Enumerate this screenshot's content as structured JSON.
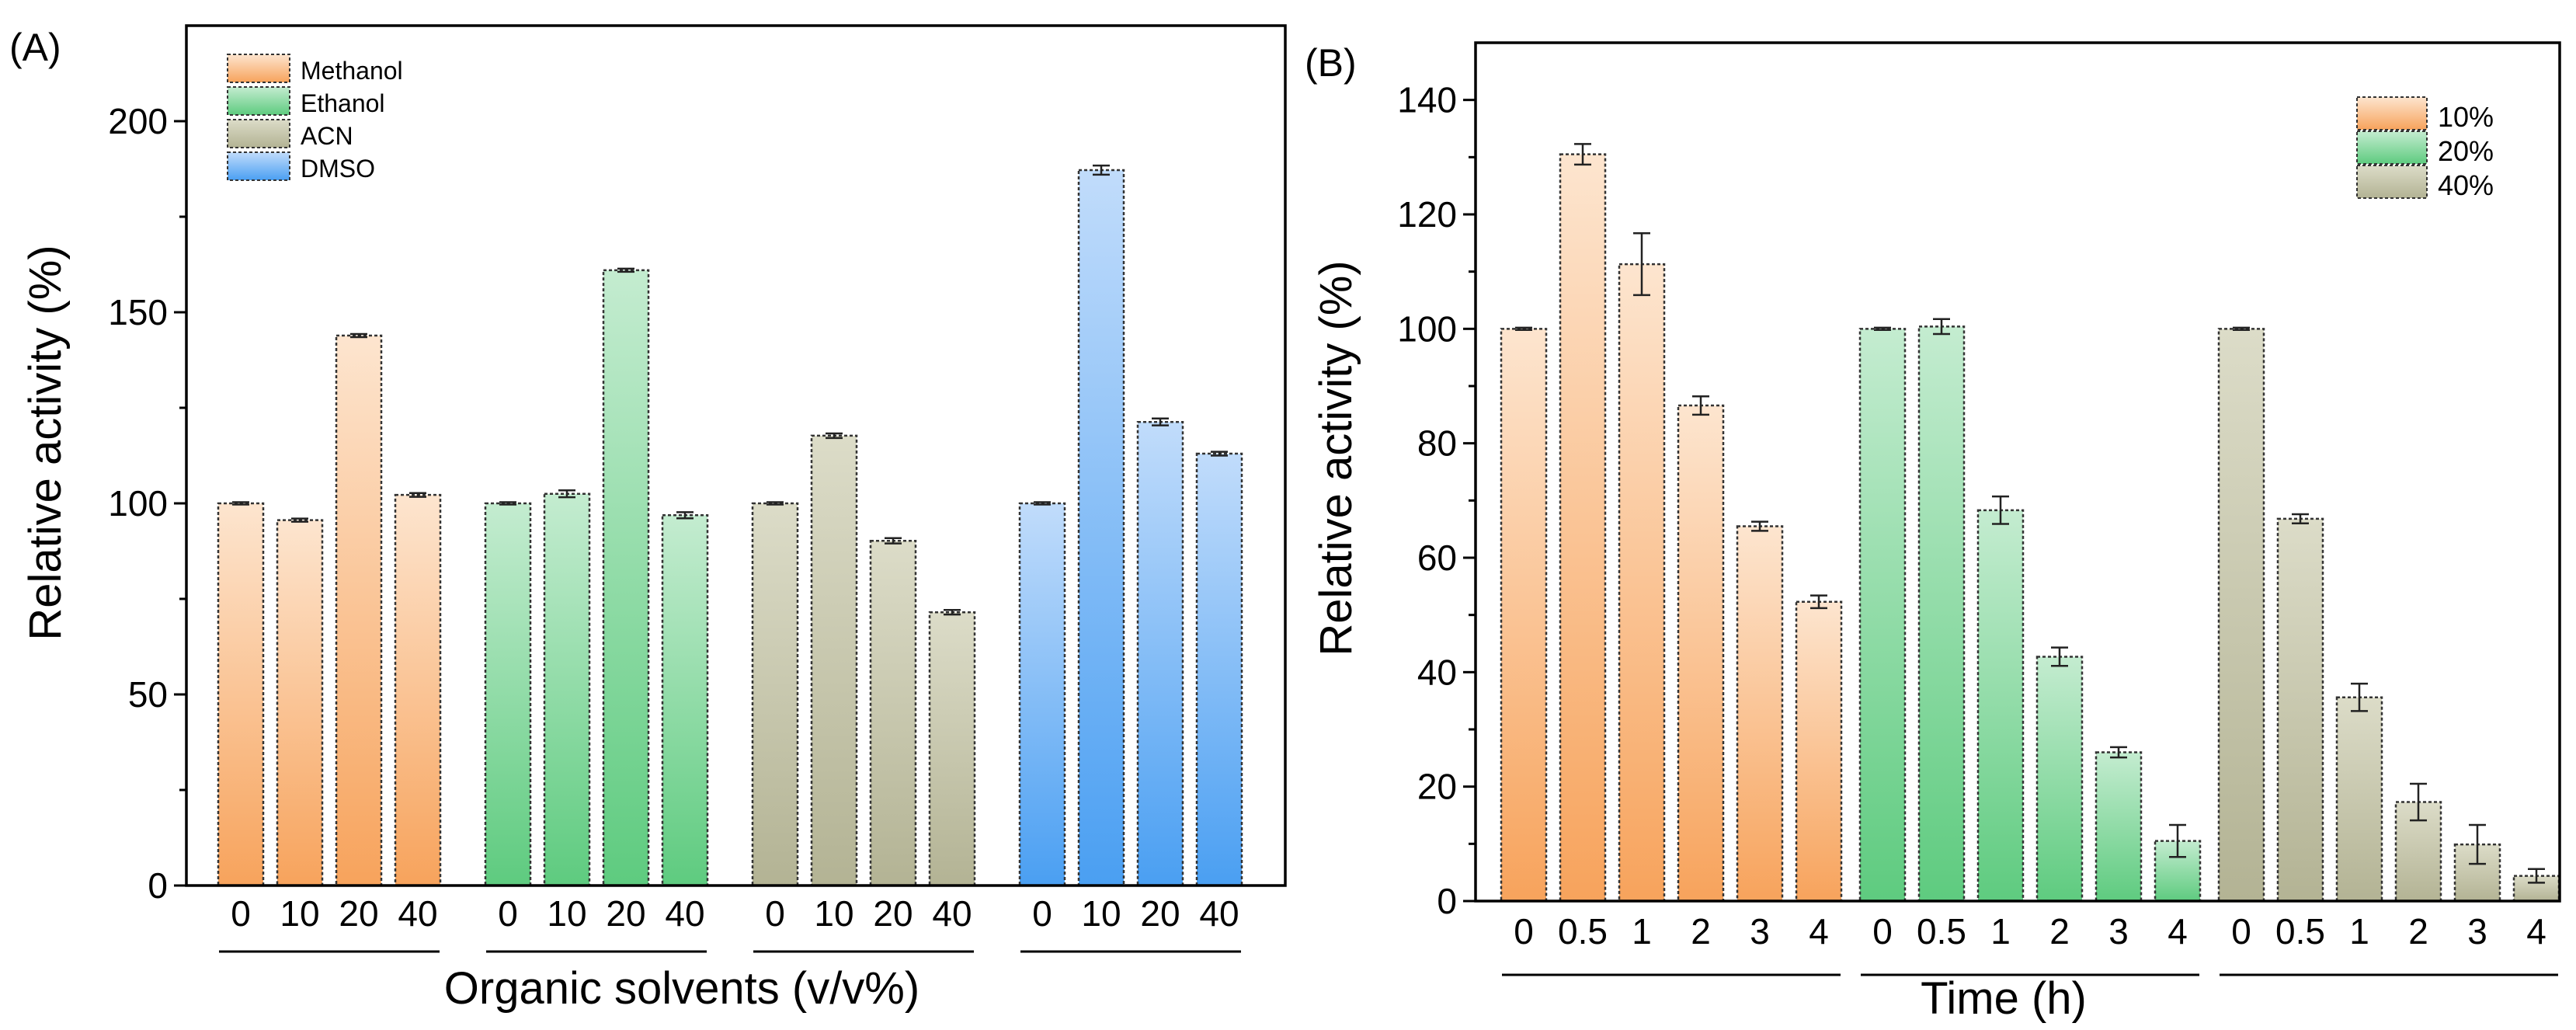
{
  "chart_data": [
    {
      "panel_label": "(A)",
      "type": "bar",
      "ylabel": "Relative activity (%)",
      "xlabel": "Organic solvents (v/v%)",
      "ylim": [
        0,
        225
      ],
      "yticks": [
        0,
        50,
        100,
        150,
        200
      ],
      "categories": [
        "0",
        "10",
        "20",
        "40"
      ],
      "legend_position": "top-left",
      "series": [
        {
          "name": "Methanol",
          "color": "#f7a35c",
          "light": "#fde5cf",
          "values": [
            100,
            95.6,
            143.9,
            102.2
          ],
          "errors": [
            0.3,
            0.4,
            0.4,
            0.5
          ]
        },
        {
          "name": "Ethanol",
          "color": "#5ecb7f",
          "light": "#c4ecd0",
          "values": [
            100,
            102.5,
            161,
            96.9
          ],
          "errors": [
            0.3,
            0.9,
            0.4,
            0.8
          ]
        },
        {
          "name": "ACN",
          "color": "#b3b394",
          "light": "#dcdcc8",
          "values": [
            100,
            117.7,
            90.2,
            71.5
          ],
          "errors": [
            0.3,
            0.6,
            0.7,
            0.6
          ]
        },
        {
          "name": "DMSO",
          "color": "#4a9ff2",
          "light": "#c1dcfb",
          "values": [
            100,
            187.2,
            121.3,
            113.0
          ],
          "errors": [
            0.3,
            1.2,
            0.9,
            0.5
          ]
        }
      ]
    },
    {
      "panel_label": "(B)",
      "type": "bar",
      "ylabel": "Relative activity (%)",
      "xlabel": "Time (h)",
      "ylim": [
        0,
        150
      ],
      "yticks": [
        0,
        20,
        40,
        60,
        80,
        100,
        120,
        140
      ],
      "categories": [
        "0",
        "0.5",
        "1",
        "2",
        "3",
        "4"
      ],
      "legend_position": "top-right",
      "series": [
        {
          "name": "10%",
          "color": "#f7a35c",
          "light": "#fde5cf",
          "values": [
            100,
            130.5,
            111.3,
            86.6,
            65.5,
            52.3
          ],
          "errors": [
            0.2,
            1.8,
            5.4,
            1.6,
            0.8,
            1.1
          ]
        },
        {
          "name": "20%",
          "color": "#5ecb7f",
          "light": "#c4ecd0",
          "values": [
            100,
            100.4,
            68.3,
            42.7,
            26.0,
            10.5
          ],
          "errors": [
            0.2,
            1.3,
            2.4,
            1.6,
            0.9,
            2.8
          ]
        },
        {
          "name": "40%",
          "color": "#b3b394",
          "light": "#dcdcc8",
          "values": [
            100,
            66.8,
            35.6,
            17.3,
            9.9,
            4.4
          ],
          "errors": [
            0.2,
            0.8,
            2.4,
            3.2,
            3.4,
            1.2
          ]
        }
      ]
    }
  ]
}
